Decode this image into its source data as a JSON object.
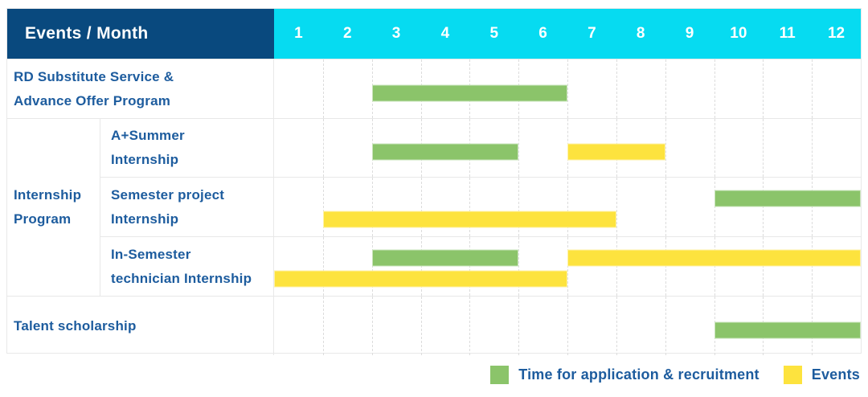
{
  "header": {
    "title": "Events / Month",
    "months": [
      "1",
      "2",
      "3",
      "4",
      "5",
      "6",
      "7",
      "8",
      "9",
      "10",
      "11",
      "12"
    ]
  },
  "group": {
    "label": "Internship\nProgram"
  },
  "rows": [
    {
      "label": "RD Substitute Service &\nAdvance Offer Program",
      "bars": [
        {
          "color": "green",
          "start": 3,
          "end": 6,
          "lane": "mid"
        }
      ]
    },
    {
      "label": "A+Summer\nInternship",
      "bars": [
        {
          "color": "green",
          "start": 3,
          "end": 5,
          "lane": "mid"
        },
        {
          "color": "yellow",
          "start": 7,
          "end": 8,
          "lane": "mid"
        }
      ]
    },
    {
      "label": "Semester project\nInternship",
      "bars": [
        {
          "color": "green",
          "start": 10,
          "end": 12,
          "lane": "top"
        },
        {
          "color": "yellow",
          "start": 2,
          "end": 7,
          "lane": "bottom"
        }
      ]
    },
    {
      "label": "In-Semester\ntechnician Internship",
      "bars": [
        {
          "color": "green",
          "start": 3,
          "end": 5,
          "lane": "top"
        },
        {
          "color": "yellow",
          "start": 7,
          "end": 12,
          "lane": "top"
        },
        {
          "color": "yellow",
          "start": 1,
          "end": 6,
          "lane": "bottom"
        }
      ]
    },
    {
      "label": "Talent scholarship",
      "bars": [
        {
          "color": "green",
          "start": 10,
          "end": 12,
          "lane": "mid"
        }
      ]
    }
  ],
  "legend": [
    {
      "label": "Time for application & recruitment",
      "color": "green"
    },
    {
      "label": "Events",
      "color": "yellow"
    }
  ],
  "colors": {
    "green": "#8bc46a",
    "yellow": "#fde33e",
    "navy": "#09497e",
    "cyan": "#06dbf1",
    "label_blue": "#1d5c9e"
  },
  "chart_data": {
    "type": "gantt",
    "title": "Events / Month",
    "x_axis": {
      "label": "Month",
      "ticks": [
        1,
        2,
        3,
        4,
        5,
        6,
        7,
        8,
        9,
        10,
        11,
        12
      ],
      "range": [
        1,
        12
      ]
    },
    "grid": true,
    "legend_position": "bottom-right",
    "series_legend": [
      "Time for application & recruitment",
      "Events"
    ],
    "tasks": [
      {
        "row": "RD Substitute Service & Advance Offer Program",
        "spans": [
          {
            "series": "Time for application & recruitment",
            "start_month": 3,
            "end_month": 6
          }
        ]
      },
      {
        "row": "Internship Program - A+Summer Internship",
        "spans": [
          {
            "series": "Time for application & recruitment",
            "start_month": 3,
            "end_month": 5
          },
          {
            "series": "Events",
            "start_month": 7,
            "end_month": 8
          }
        ]
      },
      {
        "row": "Internship Program - Semester project Internship",
        "spans": [
          {
            "series": "Time for application & recruitment",
            "start_month": 10,
            "end_month": 12
          },
          {
            "series": "Events",
            "start_month": 2,
            "end_month": 7
          }
        ]
      },
      {
        "row": "Internship Program - In-Semester technician Internship",
        "spans": [
          {
            "series": "Time for application & recruitment",
            "start_month": 3,
            "end_month": 5
          },
          {
            "series": "Events",
            "start_month": 7,
            "end_month": 12
          },
          {
            "series": "Events",
            "start_month": 1,
            "end_month": 6
          }
        ]
      },
      {
        "row": "Talent scholarship",
        "spans": [
          {
            "series": "Time for application & recruitment",
            "start_month": 10,
            "end_month": 12
          }
        ]
      }
    ]
  }
}
